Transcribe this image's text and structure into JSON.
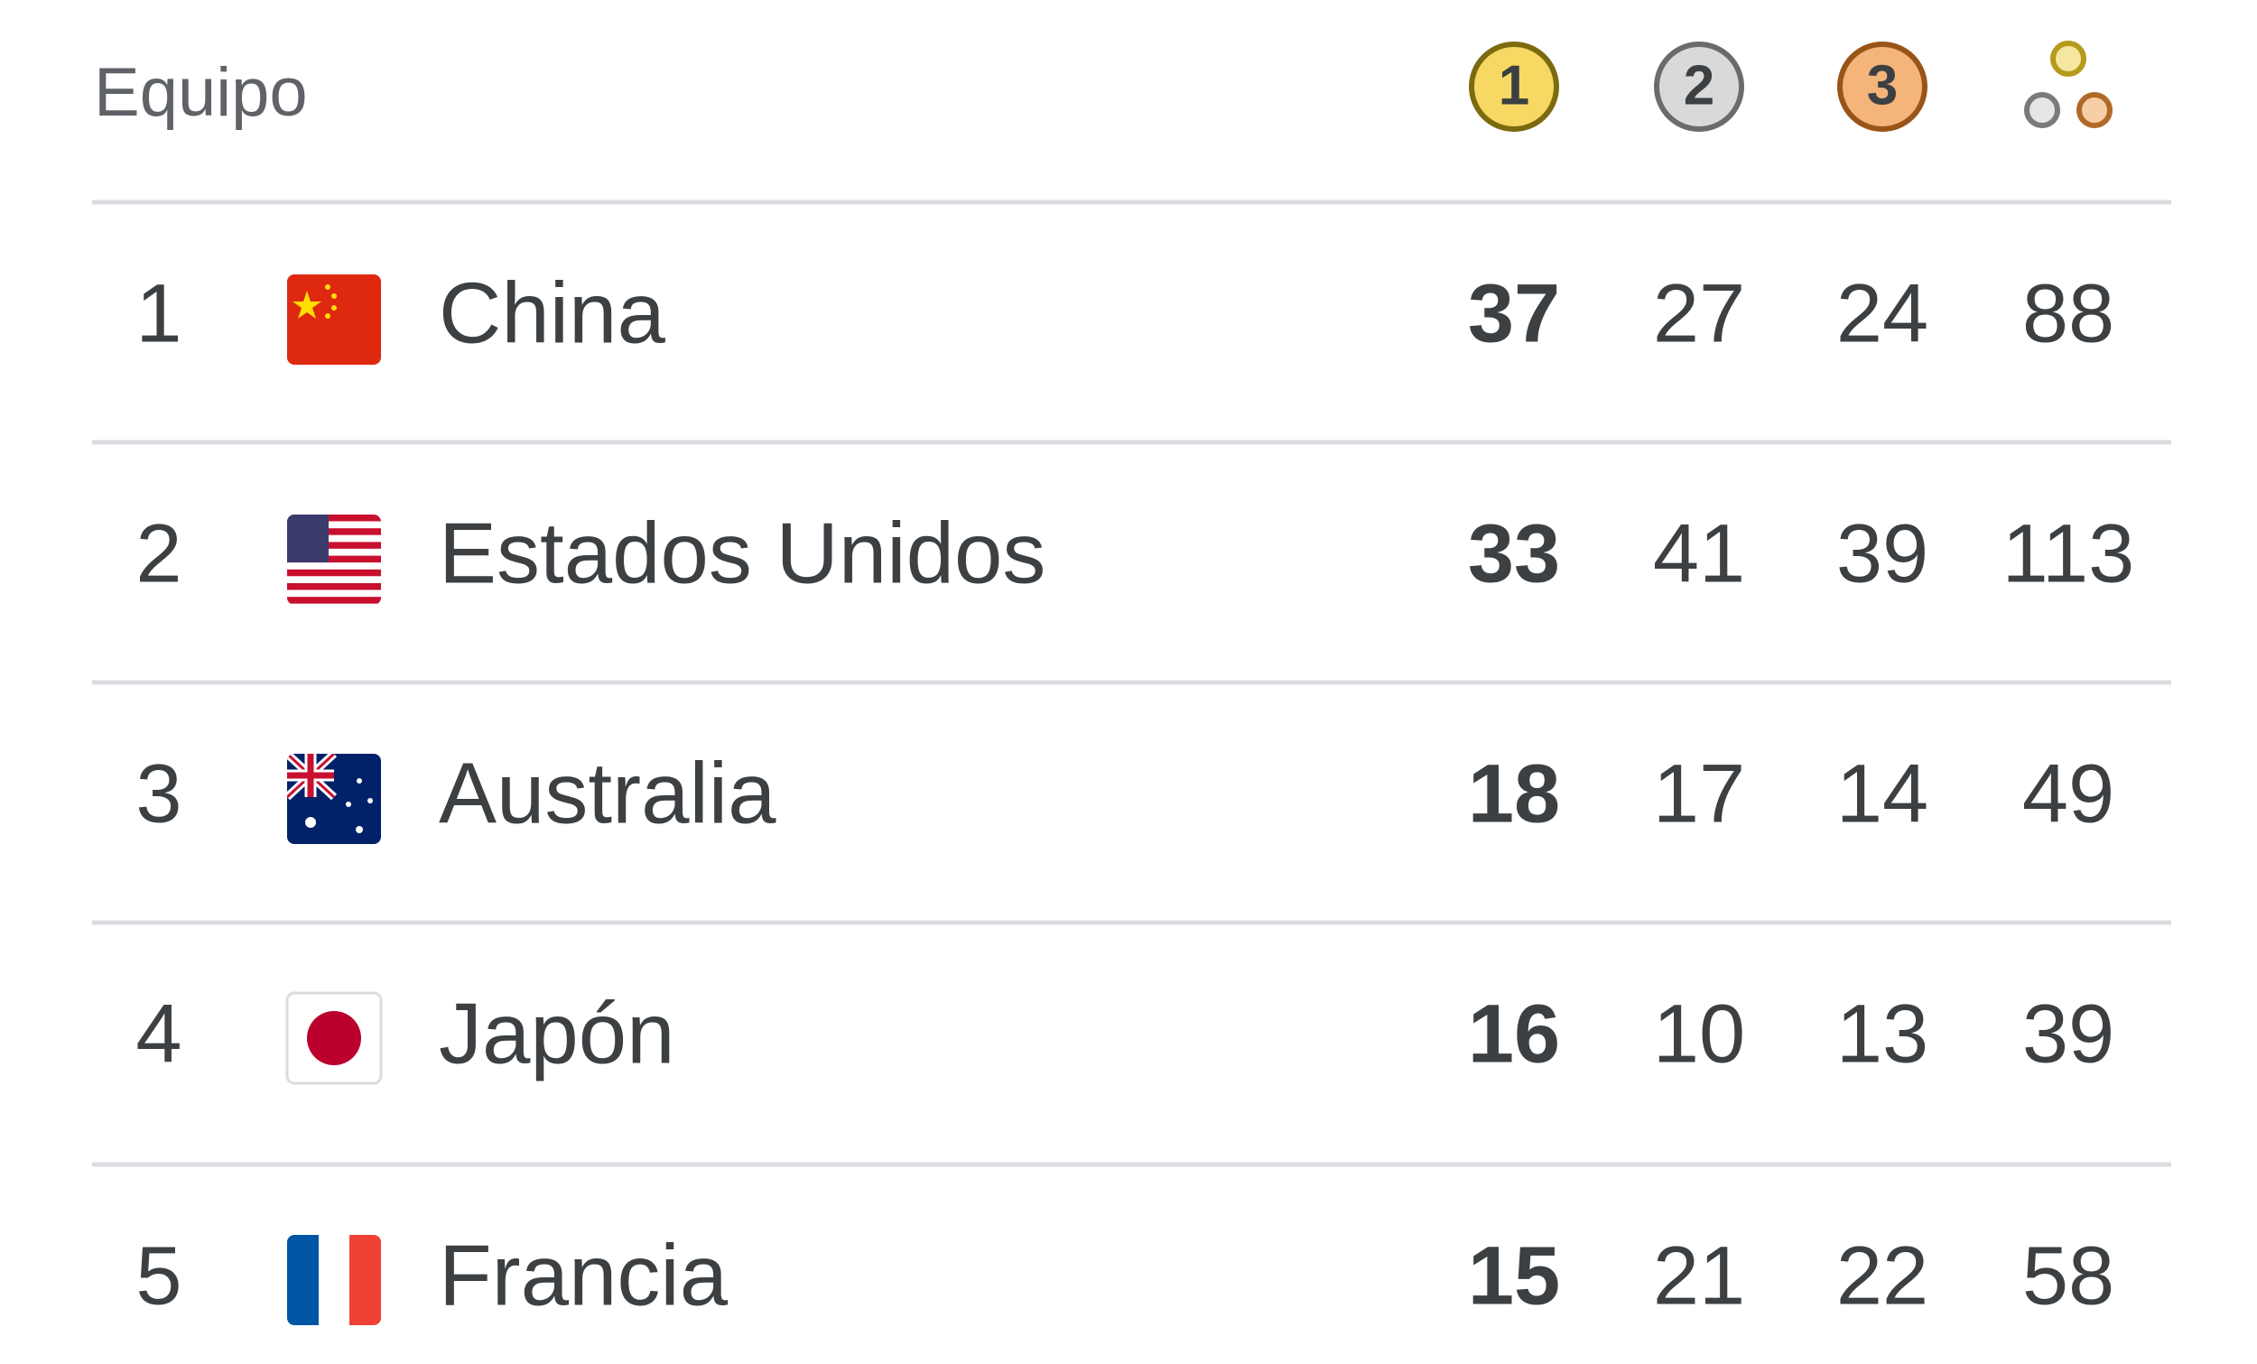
{
  "header": {
    "team": "Equipo",
    "medals": [
      1,
      2,
      3
    ]
  },
  "rows": [
    {
      "rank": 1,
      "country": "China",
      "gold": 37,
      "silver": 27,
      "bronze": 24,
      "total": 88
    },
    {
      "rank": 2,
      "country": "Estados Unidos",
      "gold": 33,
      "silver": 41,
      "bronze": 39,
      "total": 113
    },
    {
      "rank": 3,
      "country": "Australia",
      "gold": 18,
      "silver": 17,
      "bronze": 14,
      "total": 49
    },
    {
      "rank": 4,
      "country": "Japón",
      "gold": 16,
      "silver": 10,
      "bronze": 13,
      "total": 39
    },
    {
      "rank": 5,
      "country": "Francia",
      "gold": 15,
      "silver": 21,
      "bronze": 22,
      "total": 58
    }
  ]
}
